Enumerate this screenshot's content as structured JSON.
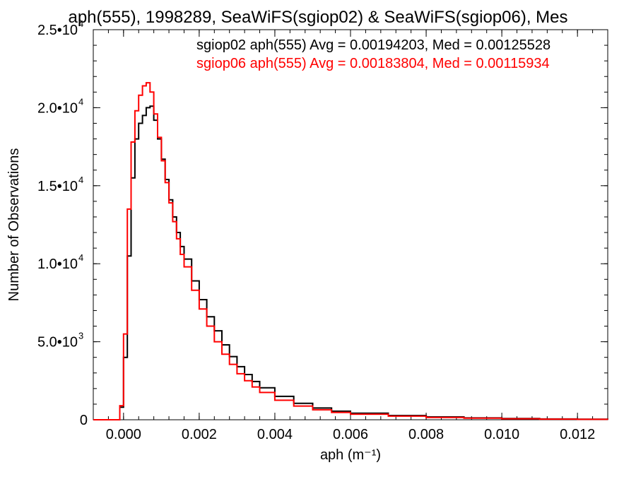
{
  "chart_data": {
    "type": "line",
    "title": "aph(555), 1998289, SeaWiFS(sgiop02) & SeaWiFS(sgiop06), Mes",
    "xlabel": "aph (m⁻¹)",
    "ylabel": "Number of Observations",
    "xlim": [
      -0.0008,
      0.0128
    ],
    "ylim": [
      0,
      25000
    ],
    "x_ticks": [
      0.0,
      0.002,
      0.004,
      0.006,
      0.008,
      0.01,
      0.012
    ],
    "x_tick_labels": [
      "0.000",
      "0.002",
      "0.004",
      "0.006",
      "0.008",
      "0.010",
      "0.012"
    ],
    "y_ticks": [
      0,
      5000,
      10000,
      15000,
      20000,
      25000
    ],
    "y_tick_labels": [
      {
        "mantissa": "0",
        "exp": ""
      },
      {
        "mantissa": "5.0•10",
        "exp": "3"
      },
      {
        "mantissa": "1.0•10",
        "exp": "4"
      },
      {
        "mantissa": "1.5•10",
        "exp": "4"
      },
      {
        "mantissa": "2.0•10",
        "exp": "4"
      },
      {
        "mantissa": "2.5•10",
        "exp": "4"
      }
    ],
    "grid": false,
    "legend_position": "top-right",
    "series": [
      {
        "name": "sgiop02 aph(555) Avg = 0.00194203, Med = 0.00125528",
        "color": "#000000",
        "x": [
          -0.0008,
          -0.0002,
          -0.0001,
          0.0,
          0.0001,
          0.0002,
          0.0003,
          0.0004,
          0.0005,
          0.0006,
          0.0007,
          0.0008,
          0.0009,
          0.001,
          0.0011,
          0.0012,
          0.0013,
          0.0014,
          0.0015,
          0.0016,
          0.0018,
          0.002,
          0.0022,
          0.0024,
          0.0026,
          0.0028,
          0.003,
          0.0032,
          0.0034,
          0.0036,
          0.004,
          0.0045,
          0.005,
          0.0055,
          0.006,
          0.007,
          0.008,
          0.009,
          0.01,
          0.011,
          0.012,
          0.0128
        ],
        "y": [
          0,
          0,
          800,
          4000,
          10500,
          15500,
          18000,
          19000,
          19500,
          20000,
          20100,
          19200,
          18000,
          16700,
          15400,
          14100,
          13000,
          12000,
          11100,
          10300,
          8900,
          7700,
          6600,
          5700,
          4800,
          4050,
          3400,
          2900,
          2450,
          2050,
          1500,
          1050,
          750,
          550,
          420,
          270,
          180,
          120,
          80,
          50,
          30,
          20
        ]
      },
      {
        "name": "sgiop06 aph(555) Avg = 0.00183804, Med = 0.00115934",
        "color": "#ff0000",
        "x": [
          -0.0008,
          -0.0002,
          -0.0001,
          0.0,
          0.0001,
          0.0002,
          0.0003,
          0.0004,
          0.0005,
          0.0006,
          0.0007,
          0.0008,
          0.0009,
          0.001,
          0.0011,
          0.0012,
          0.0013,
          0.0014,
          0.0015,
          0.0016,
          0.0018,
          0.002,
          0.0022,
          0.0024,
          0.0026,
          0.0028,
          0.003,
          0.0032,
          0.0034,
          0.0036,
          0.004,
          0.0045,
          0.005,
          0.0055,
          0.006,
          0.007,
          0.008,
          0.009,
          0.01,
          0.011,
          0.012,
          0.0128
        ],
        "y": [
          0,
          0,
          900,
          5500,
          13500,
          17800,
          19800,
          20800,
          21400,
          21600,
          21000,
          19600,
          18100,
          16600,
          15200,
          13900,
          12700,
          11600,
          10600,
          9800,
          8300,
          7100,
          6000,
          5000,
          4200,
          3550,
          2950,
          2500,
          2100,
          1750,
          1250,
          880,
          640,
          470,
          360,
          230,
          150,
          100,
          65,
          40,
          25,
          15
        ]
      }
    ]
  }
}
